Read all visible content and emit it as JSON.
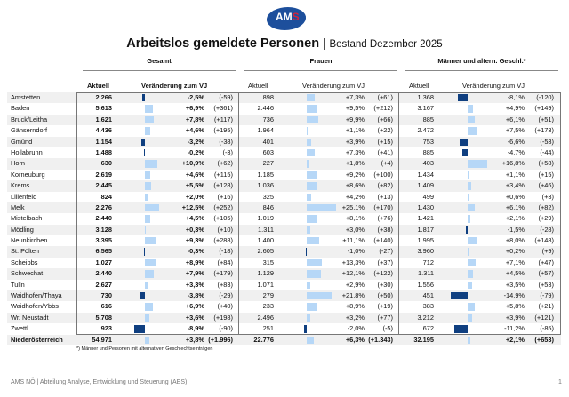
{
  "logo": {
    "text": "AMS"
  },
  "title": {
    "main": "Arbeitslos gemeldete Personen",
    "sep": "|",
    "sub": "Bestand Dezember 2025"
  },
  "groups": [
    "Gesamt",
    "Frauen",
    "Männer und altern. Geschl.*"
  ],
  "subheaders": {
    "current": "Aktuell",
    "change": "Veränderung zum VJ"
  },
  "colors": {
    "positive": "#b6d7f7",
    "negative": "#0f3f80"
  },
  "rows": [
    {
      "name": "Amstetten",
      "g": [
        "2.266",
        -2.5,
        "-2,5%",
        "(-59)"
      ],
      "f": [
        "898",
        7.3,
        "+7,3%",
        "(+61)"
      ],
      "m": [
        "1.368",
        -8.1,
        "-8,1%",
        "(-120)"
      ]
    },
    {
      "name": "Baden",
      "g": [
        "5.613",
        6.9,
        "+6,9%",
        "(+361)"
      ],
      "f": [
        "2.446",
        9.5,
        "+9,5%",
        "(+212)"
      ],
      "m": [
        "3.167",
        4.9,
        "+4,9%",
        "(+149)"
      ]
    },
    {
      "name": "Bruck/Leitha",
      "g": [
        "1.621",
        7.8,
        "+7,8%",
        "(+117)"
      ],
      "f": [
        "736",
        9.9,
        "+9,9%",
        "(+66)"
      ],
      "m": [
        "885",
        6.1,
        "+6,1%",
        "(+51)"
      ]
    },
    {
      "name": "Gänserndorf",
      "g": [
        "4.436",
        4.6,
        "+4,6%",
        "(+195)"
      ],
      "f": [
        "1.964",
        1.1,
        "+1,1%",
        "(+22)"
      ],
      "m": [
        "2.472",
        7.5,
        "+7,5%",
        "(+173)"
      ]
    },
    {
      "name": "Gmünd",
      "g": [
        "1.154",
        -3.2,
        "-3,2%",
        "(-38)"
      ],
      "f": [
        "401",
        3.9,
        "+3,9%",
        "(+15)"
      ],
      "m": [
        "753",
        -6.6,
        "-6,6%",
        "(-53)"
      ]
    },
    {
      "name": "Hollabrunn",
      "g": [
        "1.488",
        -0.2,
        "-0,2%",
        "(-3)"
      ],
      "f": [
        "603",
        7.3,
        "+7,3%",
        "(+41)"
      ],
      "m": [
        "885",
        -4.7,
        "-4,7%",
        "(-44)"
      ]
    },
    {
      "name": "Horn",
      "g": [
        "630",
        10.9,
        "+10,9%",
        "(+62)"
      ],
      "f": [
        "227",
        1.8,
        "+1,8%",
        "(+4)"
      ],
      "m": [
        "403",
        16.8,
        "+16,8%",
        "(+58)"
      ]
    },
    {
      "name": "Korneuburg",
      "g": [
        "2.619",
        4.6,
        "+4,6%",
        "(+115)"
      ],
      "f": [
        "1.185",
        9.2,
        "+9,2%",
        "(+100)"
      ],
      "m": [
        "1.434",
        1.1,
        "+1,1%",
        "(+15)"
      ]
    },
    {
      "name": "Krems",
      "g": [
        "2.445",
        5.5,
        "+5,5%",
        "(+128)"
      ],
      "f": [
        "1.036",
        8.6,
        "+8,6%",
        "(+82)"
      ],
      "m": [
        "1.409",
        3.4,
        "+3,4%",
        "(+46)"
      ]
    },
    {
      "name": "Lilienfeld",
      "g": [
        "824",
        2.0,
        "+2,0%",
        "(+16)"
      ],
      "f": [
        "325",
        4.2,
        "+4,2%",
        "(+13)"
      ],
      "m": [
        "499",
        0.6,
        "+0,6%",
        "(+3)"
      ]
    },
    {
      "name": "Melk",
      "g": [
        "2.276",
        12.5,
        "+12,5%",
        "(+252)"
      ],
      "f": [
        "846",
        25.1,
        "+25,1%",
        "(+170)"
      ],
      "m": [
        "1.430",
        6.1,
        "+6,1%",
        "(+82)"
      ]
    },
    {
      "name": "Mistelbach",
      "g": [
        "2.440",
        4.5,
        "+4,5%",
        "(+105)"
      ],
      "f": [
        "1.019",
        8.1,
        "+8,1%",
        "(+76)"
      ],
      "m": [
        "1.421",
        2.1,
        "+2,1%",
        "(+29)"
      ]
    },
    {
      "name": "Mödling",
      "g": [
        "3.128",
        0.3,
        "+0,3%",
        "(+10)"
      ],
      "f": [
        "1.311",
        3.0,
        "+3,0%",
        "(+38)"
      ],
      "m": [
        "1.817",
        -1.5,
        "-1,5%",
        "(-28)"
      ]
    },
    {
      "name": "Neunkirchen",
      "g": [
        "3.395",
        9.3,
        "+9,3%",
        "(+288)"
      ],
      "f": [
        "1.400",
        11.1,
        "+11,1%",
        "(+140)"
      ],
      "m": [
        "1.995",
        8.0,
        "+8,0%",
        "(+148)"
      ]
    },
    {
      "name": "St. Pölten",
      "g": [
        "6.565",
        -0.3,
        "-0,3%",
        "(-18)"
      ],
      "f": [
        "2.605",
        -1.0,
        "-1,0%",
        "(-27)"
      ],
      "m": [
        "3.960",
        0.2,
        "+0,2%",
        "(+9)"
      ]
    },
    {
      "name": "Scheibbs",
      "g": [
        "1.027",
        8.9,
        "+8,9%",
        "(+84)"
      ],
      "f": [
        "315",
        13.3,
        "+13,3%",
        "(+37)"
      ],
      "m": [
        "712",
        7.1,
        "+7,1%",
        "(+47)"
      ]
    },
    {
      "name": "Schwechat",
      "g": [
        "2.440",
        7.9,
        "+7,9%",
        "(+179)"
      ],
      "f": [
        "1.129",
        12.1,
        "+12,1%",
        "(+122)"
      ],
      "m": [
        "1.311",
        4.5,
        "+4,5%",
        "(+57)"
      ]
    },
    {
      "name": "Tulln",
      "g": [
        "2.627",
        3.3,
        "+3,3%",
        "(+83)"
      ],
      "f": [
        "1.071",
        2.9,
        "+2,9%",
        "(+30)"
      ],
      "m": [
        "1.556",
        3.5,
        "+3,5%",
        "(+53)"
      ]
    },
    {
      "name": "Waidhofen/Thaya",
      "g": [
        "730",
        -3.8,
        "-3,8%",
        "(-29)"
      ],
      "f": [
        "279",
        21.8,
        "+21,8%",
        "(+50)"
      ],
      "m": [
        "451",
        -14.9,
        "-14,9%",
        "(-79)"
      ]
    },
    {
      "name": "Waidhofen/Ybbs",
      "g": [
        "616",
        6.9,
        "+6,9%",
        "(+40)"
      ],
      "f": [
        "233",
        8.9,
        "+8,9%",
        "(+19)"
      ],
      "m": [
        "383",
        5.8,
        "+5,8%",
        "(+21)"
      ]
    },
    {
      "name": "Wr. Neustadt",
      "g": [
        "5.708",
        3.6,
        "+3,6%",
        "(+198)"
      ],
      "f": [
        "2.496",
        3.2,
        "+3,2%",
        "(+77)"
      ],
      "m": [
        "3.212",
        3.9,
        "+3,9%",
        "(+121)"
      ]
    },
    {
      "name": "Zwettl",
      "g": [
        "923",
        -8.9,
        "-8,9%",
        "(-90)"
      ],
      "f": [
        "251",
        -2.0,
        "-2,0%",
        "(-5)"
      ],
      "m": [
        "672",
        -11.2,
        "-11,2%",
        "(-85)"
      ]
    },
    {
      "name": "Niederösterreich",
      "g": [
        "54.971",
        3.8,
        "+3,8%",
        "(+1.996)"
      ],
      "f": [
        "22.776",
        6.3,
        "+6,3%",
        "(+1.343)"
      ],
      "m": [
        "32.195",
        2.1,
        "+2,1%",
        "(+653)"
      ],
      "total": true
    }
  ],
  "footnote": "*) Männer und Personen mit alternativen Geschlechtseinträgen",
  "footer": "AMS NÖ | Abteilung Analyse, Entwicklung und Steuerung (AES)",
  "page_number": "1"
}
